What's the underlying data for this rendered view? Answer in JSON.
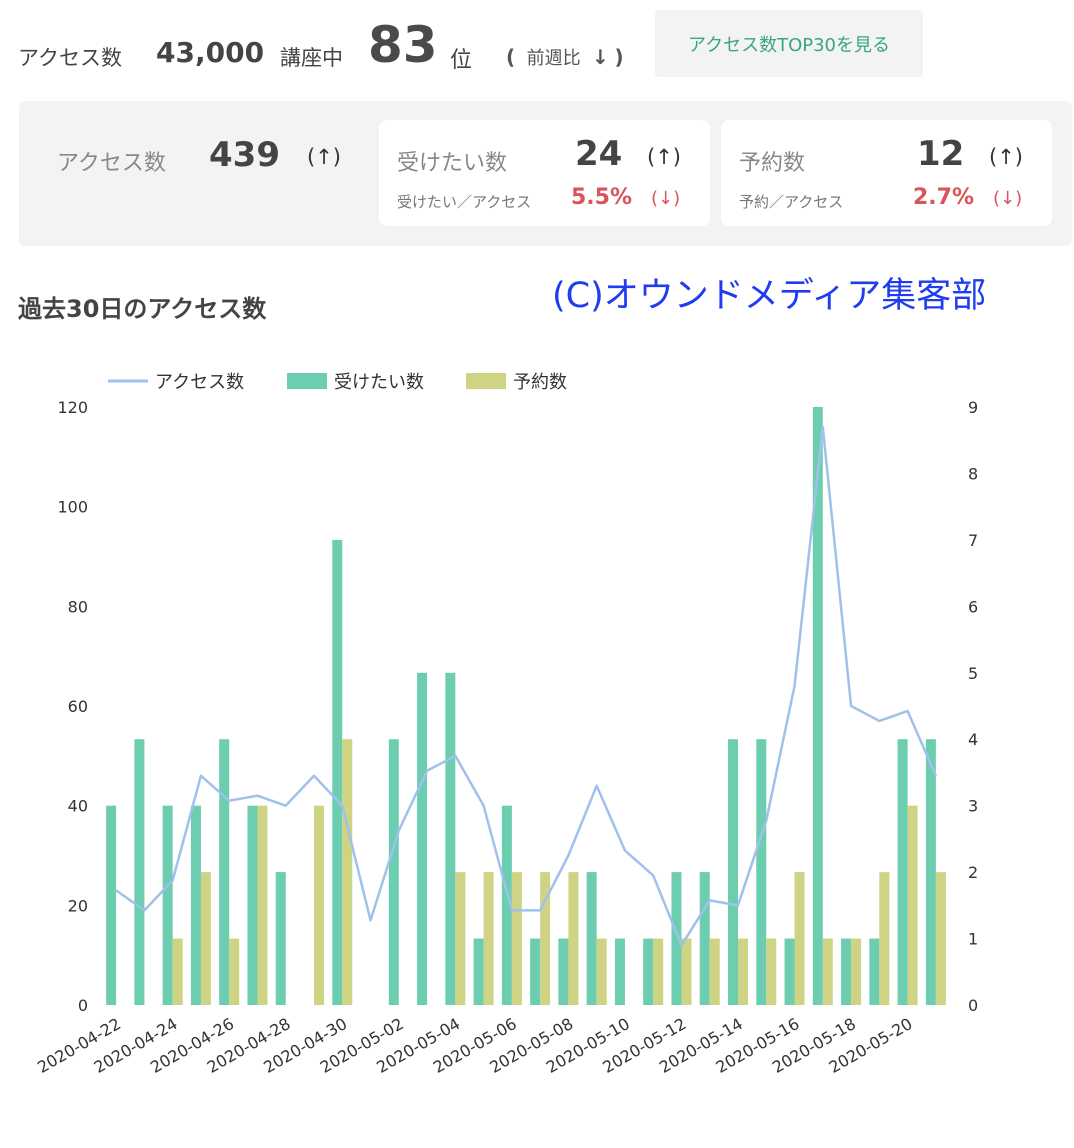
{
  "ranking": {
    "access_label": "アクセス数",
    "total_courses": "43,000",
    "courses_label": "講座中",
    "rank": "83",
    "rank_unit": "位",
    "wow_open": "(",
    "wow_label": "前週比",
    "wow_arrow": "↓",
    "wow_close": ")",
    "top30_button": "アクセス数TOP30を見る"
  },
  "stats": {
    "access": {
      "label": "アクセス数",
      "value": "439",
      "arrow": "(↑)"
    },
    "want": {
      "label": "受けたい数",
      "value": "24",
      "arrow": "(↑)",
      "ratio_label": "受けたい／アクセス",
      "ratio": "5.5%",
      "ratio_arrow": "(↓)"
    },
    "reserve": {
      "label": "予約数",
      "value": "12",
      "arrow": "(↑)",
      "ratio_label": "予約／アクセス",
      "ratio": "2.7%",
      "ratio_arrow": "(↓)"
    }
  },
  "chart_title": "過去30日のアクセス数",
  "credit": "(C)オウンドメディア集客部",
  "colors": {
    "accent_green": "#3aa57f",
    "down_red": "#d9545b",
    "line": "#9fc1ec",
    "bar_want": "#6ccdb0",
    "bar_reserve": "#cfd384",
    "credit_blue": "#1f3cf0"
  },
  "chart_data": {
    "type": "bar",
    "legend": [
      "アクセス数",
      "受けたい数",
      "予約数"
    ],
    "legend_position": "top-left",
    "x_ticks": [
      "2020-04-22",
      "2020-04-24",
      "2020-04-26",
      "2020-04-28",
      "2020-04-30",
      "2020-05-02",
      "2020-05-04",
      "2020-05-06",
      "2020-05-08",
      "2020-05-10",
      "2020-05-12",
      "2020-05-14",
      "2020-05-16",
      "2020-05-18",
      "2020-05-20"
    ],
    "dates": [
      "2020-04-22",
      "2020-04-23",
      "2020-04-24",
      "2020-04-25",
      "2020-04-26",
      "2020-04-27",
      "2020-04-28",
      "2020-04-29",
      "2020-04-30",
      "2020-05-01",
      "2020-05-02",
      "2020-05-03",
      "2020-05-04",
      "2020-05-05",
      "2020-05-06",
      "2020-05-07",
      "2020-05-08",
      "2020-05-09",
      "2020-05-10",
      "2020-05-11",
      "2020-05-12",
      "2020-05-13",
      "2020-05-14",
      "2020-05-15",
      "2020-05-16",
      "2020-05-17",
      "2020-05-18",
      "2020-05-19",
      "2020-05-20",
      "2020-05-21"
    ],
    "y_left": {
      "min": 0,
      "max": 120,
      "ticks": [
        0,
        20,
        40,
        60,
        80,
        100,
        120
      ]
    },
    "y_right": {
      "min": 0,
      "max": 9,
      "ticks": [
        0,
        1,
        2,
        3,
        4,
        5,
        6,
        7,
        8,
        9
      ]
    },
    "grid": false,
    "series": [
      {
        "name": "アクセス数",
        "type": "line",
        "axis": "left",
        "values": [
          23,
          19,
          25,
          46,
          41,
          42,
          40,
          46,
          40,
          17,
          35,
          47,
          50,
          40,
          19,
          19,
          30,
          44,
          31,
          26,
          12,
          21,
          20,
          37,
          64,
          116,
          60,
          57,
          59,
          46
        ]
      },
      {
        "name": "受けたい数",
        "type": "bar",
        "axis": "right",
        "values": [
          3,
          4,
          3,
          3,
          4,
          3,
          2,
          0,
          7,
          0,
          4,
          5,
          5,
          1,
          3,
          1,
          1,
          2,
          1,
          1,
          2,
          2,
          4,
          4,
          1,
          9,
          1,
          1,
          4,
          4
        ]
      },
      {
        "name": "予約数",
        "type": "bar",
        "axis": "right",
        "values": [
          0,
          0,
          1,
          2,
          1,
          3,
          0,
          3,
          4,
          0,
          0,
          0,
          2,
          2,
          2,
          2,
          2,
          1,
          0,
          1,
          1,
          1,
          1,
          1,
          2,
          1,
          1,
          2,
          3,
          2
        ]
      }
    ]
  }
}
